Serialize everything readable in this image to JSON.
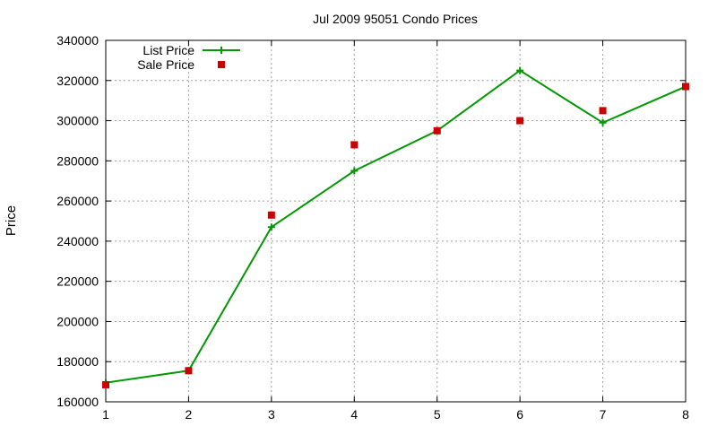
{
  "chart_data": {
    "type": "line",
    "title": "Jul 2009 95051 Condo Prices",
    "xlabel": "",
    "ylabel": "Price",
    "x": [
      1,
      2,
      3,
      4,
      5,
      6,
      7,
      8
    ],
    "xlim": [
      1,
      8
    ],
    "ylim": [
      160000,
      340000
    ],
    "x_ticks": [
      "1",
      "2",
      "3",
      "4",
      "5",
      "6",
      "7",
      "8"
    ],
    "y_ticks": [
      "160000",
      "180000",
      "200000",
      "220000",
      "240000",
      "260000",
      "280000",
      "300000",
      "320000",
      "340000"
    ],
    "grid": true,
    "legend_position": "top-left",
    "series": [
      {
        "name": "List Price",
        "style": "line-with-plus-markers",
        "color": "#009900",
        "values": [
          169500,
          175500,
          247000,
          275000,
          295000,
          325000,
          299000,
          317000
        ]
      },
      {
        "name": "Sale Price",
        "style": "square-markers",
        "color": "#cc0000",
        "values": [
          168500,
          175500,
          253000,
          288000,
          295000,
          300000,
          305000,
          317000
        ]
      }
    ]
  }
}
